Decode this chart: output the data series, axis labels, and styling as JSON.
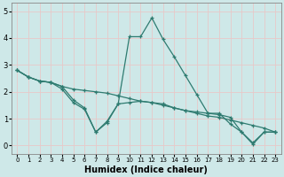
{
  "title": "",
  "xlabel": "Humidex (Indice chaleur)",
  "ylabel": "",
  "bg_color": "#cee8e8",
  "line_color": "#2e7b70",
  "grid_color": "#dff0f0",
  "xlim": [
    -0.5,
    23.5
  ],
  "ylim": [
    -0.3,
    5.3
  ],
  "xticks": [
    0,
    1,
    2,
    3,
    4,
    5,
    6,
    7,
    8,
    9,
    10,
    11,
    12,
    13,
    14,
    15,
    16,
    17,
    18,
    19,
    20,
    21,
    22,
    23
  ],
  "yticks": [
    0,
    1,
    2,
    3,
    4,
    5
  ],
  "line1_x": [
    0,
    1,
    2,
    3,
    4,
    5,
    6,
    7,
    8,
    9,
    10,
    11,
    12,
    13,
    14,
    15,
    16,
    17,
    18,
    19,
    20,
    21,
    22,
    23
  ],
  "line1_y": [
    2.8,
    2.55,
    2.4,
    2.35,
    2.2,
    2.1,
    2.05,
    2.0,
    1.95,
    1.85,
    1.75,
    1.65,
    1.6,
    1.5,
    1.4,
    1.3,
    1.2,
    1.1,
    1.05,
    0.95,
    0.85,
    0.75,
    0.65,
    0.5
  ],
  "line2_x": [
    0,
    1,
    2,
    3,
    4,
    5,
    6,
    7,
    8,
    9,
    10,
    11,
    12,
    13,
    14,
    15,
    16,
    17,
    18,
    19,
    20,
    21,
    22,
    23
  ],
  "line2_y": [
    2.8,
    2.55,
    2.4,
    2.35,
    2.2,
    1.7,
    1.4,
    0.5,
    0.9,
    1.55,
    4.05,
    4.05,
    4.75,
    3.95,
    3.3,
    2.6,
    1.9,
    1.2,
    1.2,
    0.8,
    0.5,
    0.05,
    0.5,
    0.5
  ],
  "line3_x": [
    0,
    1,
    2,
    3,
    4,
    5,
    6,
    7,
    8,
    9,
    10,
    11,
    12,
    13,
    14,
    15,
    16,
    17,
    18,
    19,
    20,
    21,
    22,
    23
  ],
  "line3_y": [
    2.8,
    2.55,
    2.4,
    2.35,
    2.1,
    1.6,
    1.35,
    0.5,
    0.85,
    1.55,
    1.6,
    1.65,
    1.6,
    1.55,
    1.4,
    1.3,
    1.25,
    1.2,
    1.15,
    1.05,
    0.5,
    0.1,
    0.5,
    0.5
  ]
}
